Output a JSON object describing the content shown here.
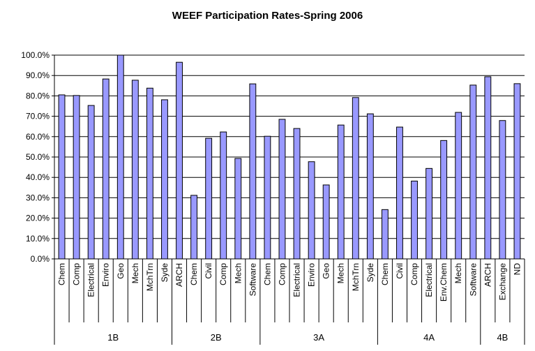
{
  "chart_data": {
    "type": "bar",
    "title": "WEEF Participation Rates-Spring 2006",
    "xlabel": "",
    "ylabel": "",
    "ylim": [
      0,
      100
    ],
    "yticks": [
      "0.0%",
      "10.0%",
      "20.0%",
      "30.0%",
      "40.0%",
      "50.0%",
      "60.0%",
      "70.0%",
      "80.0%",
      "90.0%",
      "100.0%"
    ],
    "grid": true,
    "colors": {
      "bar_fill": "#9999ff",
      "bar_stroke": "#000000"
    },
    "groups": [
      {
        "label": "1B",
        "categories": [
          "Chem",
          "Comp",
          "Electrical",
          "Enviro",
          "Geo",
          "Mech",
          "MchTrn",
          "Syde"
        ],
        "values": [
          80.5,
          80.2,
          75.3,
          88.3,
          100.0,
          87.7,
          83.8,
          78.1
        ]
      },
      {
        "label": "2B",
        "categories": [
          "ARCH",
          "Chem",
          "Civil",
          "Comp",
          "Mech",
          "Software"
        ],
        "values": [
          96.5,
          31.2,
          59.2,
          62.3,
          49.3,
          85.9
        ]
      },
      {
        "label": "3A",
        "categories": [
          "Chem",
          "Comp",
          "Electrical",
          "Enviro",
          "Geo",
          "Mech",
          "MchTrn",
          "Syde"
        ],
        "values": [
          60.2,
          68.5,
          64.0,
          47.7,
          36.3,
          65.7,
          79.2,
          71.2
        ]
      },
      {
        "label": "4A",
        "categories": [
          "Chem",
          "Civil",
          "Comp",
          "Electrical",
          "Env.Chem",
          "Mech",
          "Software"
        ],
        "values": [
          24.2,
          64.7,
          38.2,
          44.4,
          58.1,
          71.9,
          85.3
        ]
      },
      {
        "label": "4B",
        "categories": [
          "ARCH",
          "Exchange",
          "ND"
        ],
        "values": [
          89.4,
          67.9,
          86.0
        ]
      }
    ]
  }
}
